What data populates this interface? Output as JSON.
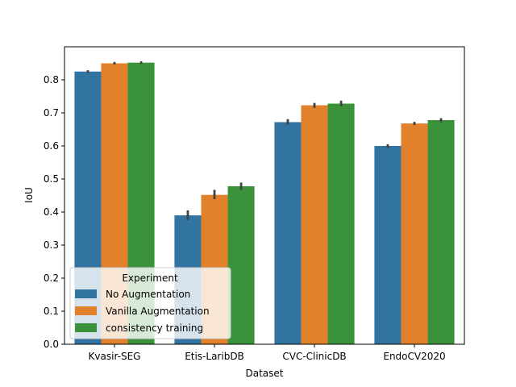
{
  "chart_data": {
    "type": "bar",
    "title": "",
    "xlabel": "Dataset",
    "ylabel": "IoU",
    "ylim": [
      0,
      0.9
    ],
    "yticks": [
      0.0,
      0.1,
      0.2,
      0.3,
      0.4,
      0.5,
      0.6,
      0.7,
      0.8
    ],
    "ytick_labels": [
      "0.0",
      "0.1",
      "0.2",
      "0.3",
      "0.4",
      "0.5",
      "0.6",
      "0.7",
      "0.8"
    ],
    "categories": [
      "Kvasir-SEG",
      "Etis-LaribDB",
      "CVC-ClinicDB",
      "EndoCV2020"
    ],
    "legend": {
      "title": "Experiment",
      "placement": "lower-left"
    },
    "series": [
      {
        "name": "No Augmentation",
        "color": "#3274a1",
        "values": [
          0.825,
          0.39,
          0.672,
          0.6
        ],
        "err": [
          [
            0.821,
            0.829
          ],
          [
            0.376,
            0.405
          ],
          [
            0.665,
            0.681
          ],
          [
            0.594,
            0.605
          ]
        ]
      },
      {
        "name": "Vanilla Augmentation",
        "color": "#e1812c",
        "values": [
          0.85,
          0.452,
          0.723,
          0.668
        ],
        "err": [
          [
            0.846,
            0.854
          ],
          [
            0.439,
            0.467
          ],
          [
            0.715,
            0.73
          ],
          [
            0.663,
            0.673
          ]
        ]
      },
      {
        "name": "consistency training",
        "color": "#3a923a",
        "values": [
          0.852,
          0.478,
          0.728,
          0.678
        ],
        "err": [
          [
            0.848,
            0.856
          ],
          [
            0.467,
            0.489
          ],
          [
            0.72,
            0.737
          ],
          [
            0.672,
            0.684
          ]
        ]
      }
    ]
  }
}
